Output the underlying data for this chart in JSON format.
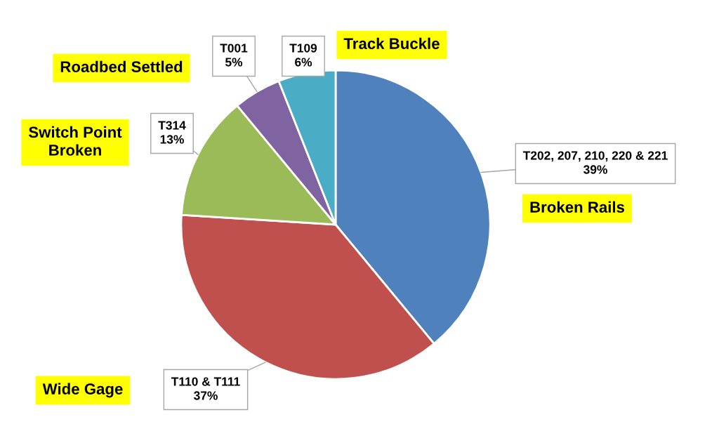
{
  "chart_data": {
    "type": "pie",
    "categories": [
      "T202, 207, 210, 220 & 221",
      "T110 & T111",
      "T314",
      "T001",
      "T109"
    ],
    "values": [
      39,
      37,
      13,
      5,
      6
    ],
    "value_labels": [
      "39%",
      "37%",
      "13%",
      "5%",
      "6%"
    ],
    "colors": [
      "#4f81bd",
      "#c0504d",
      "#9bbb59",
      "#8064a2",
      "#4bacc6"
    ],
    "annotations": [
      "Broken Rails",
      "Wide Gage",
      "Switch Point\nBroken",
      "Roadbed Settled",
      "Track Buckle"
    ],
    "legend": false
  }
}
